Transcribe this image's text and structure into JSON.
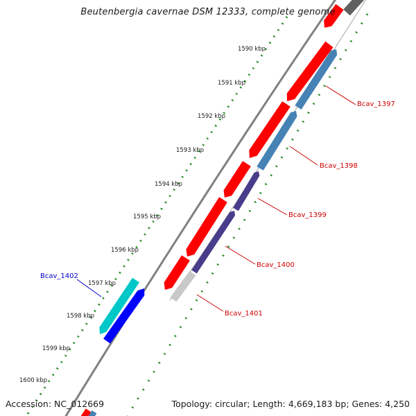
{
  "title": "Beutenbergia cavernae DSM 12333, complete genome",
  "footer": {
    "accession_label": "Accession:",
    "accession": "NC_012669",
    "topology_label": "Topology:",
    "topology": "circular",
    "length_label": "Length:",
    "length": "4,669,183 bp",
    "genes_label": "Genes:",
    "genes": "4,250"
  },
  "ticks": [
    {
      "label": "1590 kbp"
    },
    {
      "label": "1591 kbp"
    },
    {
      "label": "1592 kbp"
    },
    {
      "label": "1593 kbp"
    },
    {
      "label": "1594 kbp"
    },
    {
      "label": "1595 kbp"
    },
    {
      "label": "1596 kbp"
    },
    {
      "label": "1597 kbp"
    },
    {
      "label": "1598 kbp"
    },
    {
      "label": "1599 kbp"
    },
    {
      "label": "1600 kbp"
    }
  ],
  "genes": [
    {
      "name": "Bcav_1397",
      "label_color": "#cc0000"
    },
    {
      "name": "Bcav_1398",
      "label_color": "#cc0000"
    },
    {
      "name": "Bcav_1399",
      "label_color": "#cc0000"
    },
    {
      "name": "Bcav_1400",
      "label_color": "#cc0000"
    },
    {
      "name": "Bcav_1401",
      "label_color": "#cc0000"
    },
    {
      "name": "Bcav_1402",
      "label_color": "#0000cc"
    }
  ],
  "colors": {
    "forward_cds": "#ff0000",
    "reverse_cds_a": "#4682b4",
    "reverse_cds_b": "#483d8b",
    "pseudo": "#c8c8c8",
    "highlight_top": "#00c8c8",
    "highlight_bottom": "#0000ff",
    "backbone": "#808080",
    "tick_dots": "#228b22"
  }
}
